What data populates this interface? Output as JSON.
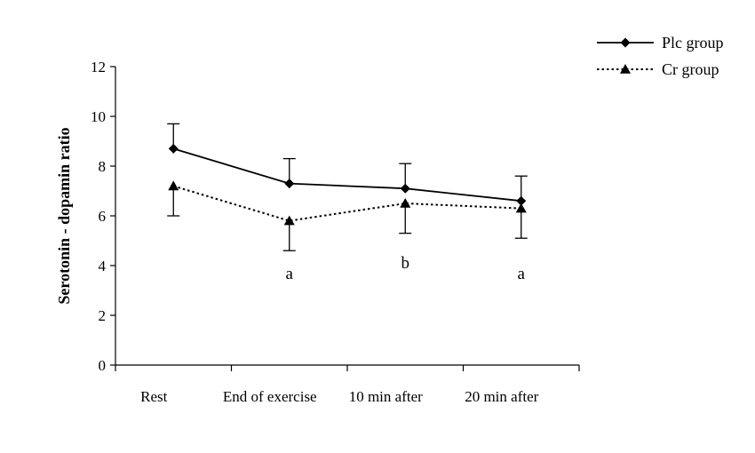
{
  "chart_data": {
    "type": "line",
    "title": "",
    "xlabel": "",
    "ylabel": "Serotonin - dopamin ratio",
    "categories": [
      "Rest",
      "End of exercise",
      "10 min after",
      "20 min after"
    ],
    "ylim": [
      0,
      12
    ],
    "yticks": [
      0,
      2,
      4,
      6,
      8,
      10,
      12
    ],
    "grid": false,
    "legend_position": "top-right",
    "series": [
      {
        "name": "Plc group",
        "values": [
          8.7,
          7.3,
          7.1,
          6.6
        ],
        "error_up": [
          9.7,
          8.3,
          8.1,
          7.6
        ],
        "line_style": "solid",
        "marker": "diamond",
        "color": "#000000"
      },
      {
        "name": "Cr group",
        "values": [
          7.2,
          5.8,
          6.5,
          6.3
        ],
        "error_down": [
          6.0,
          4.6,
          5.3,
          5.1
        ],
        "line_style": "dotted",
        "marker": "triangle",
        "color": "#000000"
      }
    ],
    "annotations": [
      {
        "category": "End of exercise",
        "text": "a"
      },
      {
        "category": "10 min after",
        "text": "b"
      },
      {
        "category": "20 min after",
        "text": "a"
      }
    ]
  }
}
